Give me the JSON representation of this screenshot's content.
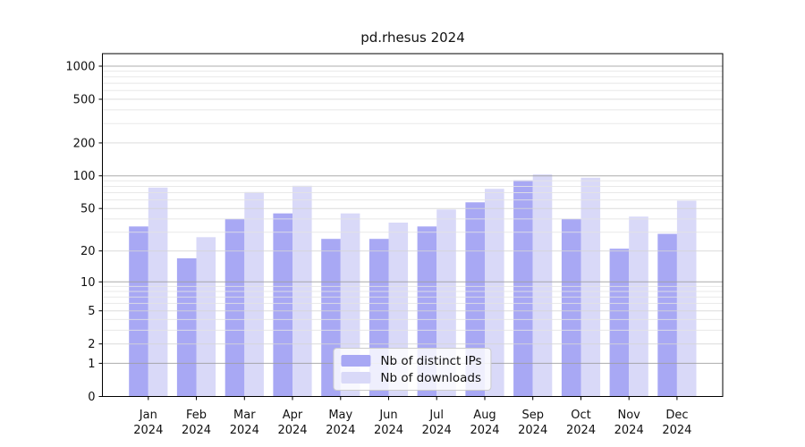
{
  "chart_data": {
    "type": "bar",
    "title": "pd.rhesus 2024",
    "categories": [
      "Jan\n2024",
      "Feb\n2024",
      "Mar\n2024",
      "Apr\n2024",
      "May\n2024",
      "Jun\n2024",
      "Jul\n2024",
      "Aug\n2024",
      "Sep\n2024",
      "Oct\n2024",
      "Nov\n2024",
      "Dec\n2024"
    ],
    "series": [
      {
        "name": "Nb of distinct IPs",
        "color": "#a8a8f4",
        "values": [
          34,
          17,
          40,
          45,
          26,
          26,
          34,
          57,
          91,
          40,
          21,
          29
        ]
      },
      {
        "name": "Nb of downloads",
        "color": "#d9d9f8",
        "values": [
          78,
          27,
          71,
          81,
          45,
          37,
          49,
          76,
          103,
          96,
          42,
          59
        ]
      }
    ],
    "yscale": "log1p",
    "ylim": [
      0,
      1300
    ],
    "yticks": [
      0,
      1,
      2,
      5,
      10,
      20,
      50,
      100,
      200,
      500,
      1000
    ],
    "gridlines": {
      "major": [
        1,
        10,
        100,
        1000
      ],
      "labeled": [
        2,
        5,
        20,
        50,
        200,
        500
      ],
      "minor": [
        3,
        4,
        6,
        7,
        8,
        9,
        30,
        40,
        60,
        70,
        80,
        90,
        300,
        400,
        600,
        700,
        800,
        900
      ]
    },
    "grid": true,
    "legend_position": "lower center",
    "colors": {
      "axis": "#000000",
      "text": "#111111",
      "grid_major": "#9e9e9e",
      "grid_labeled": "#d6d6d6",
      "grid_minor": "#e4e4e4",
      "background": "#ffffff"
    }
  }
}
